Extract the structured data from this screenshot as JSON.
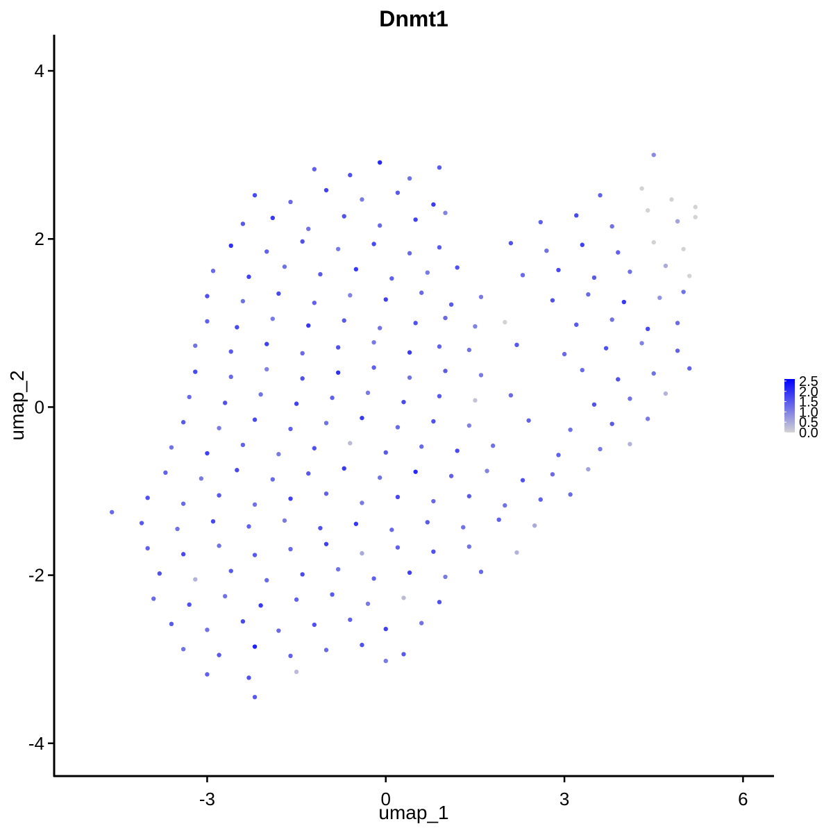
{
  "chart_data": {
    "type": "scatter",
    "title": "Dnmt1",
    "x_label": "umap_1",
    "y_label": "umap_2",
    "xlim": [
      -5.57,
      6.52
    ],
    "ylim": [
      -4.39,
      4.43
    ],
    "xticks": [
      -3,
      0,
      3,
      6
    ],
    "yticks": [
      -4,
      -2,
      0,
      2,
      4
    ],
    "color_low": "#d3d3d3",
    "color_high": "#0000ff",
    "clim": [
      0,
      2.6
    ],
    "cticks": [
      {
        "value": 0,
        "label": "0.0"
      },
      0.5,
      {
        "value": 1,
        "label": "1.0"
      },
      1.5,
      {
        "value": 2,
        "label": "2.0"
      },
      2.5
    ],
    "x": [
      -1.2,
      -0.6,
      -0.1,
      0.4,
      0.9,
      4.5,
      -2.2,
      -1.6,
      -1.0,
      -0.4,
      0.2,
      0.8,
      3.6,
      4.3,
      4.8,
      5.2,
      -2.4,
      -1.9,
      -1.3,
      -0.7,
      -0.1,
      0.5,
      1.0,
      2.6,
      3.2,
      3.8,
      4.4,
      4.9,
      5.2,
      -2.6,
      -2.0,
      -1.4,
      -0.8,
      -0.2,
      0.4,
      0.9,
      2.1,
      2.7,
      3.3,
      3.9,
      4.5,
      5.0,
      -2.9,
      -2.3,
      -1.7,
      -1.1,
      -0.5,
      0.1,
      0.7,
      1.2,
      2.3,
      2.9,
      3.5,
      4.1,
      4.7,
      5.1,
      -3.0,
      -2.4,
      -1.8,
      -1.2,
      -0.6,
      0.0,
      0.6,
      1.1,
      1.6,
      2.8,
      3.4,
      4.0,
      4.6,
      5.0,
      -3.0,
      -2.5,
      -1.9,
      -1.3,
      -0.7,
      -0.1,
      0.5,
      1.0,
      1.5,
      2.0,
      3.2,
      3.8,
      4.4,
      4.9,
      -3.2,
      -2.6,
      -2.0,
      -1.4,
      -0.8,
      -0.2,
      0.4,
      0.9,
      1.4,
      2.2,
      3.0,
      3.7,
      4.3,
      4.9,
      -3.2,
      -2.6,
      -2.0,
      -1.4,
      -0.8,
      -0.2,
      0.4,
      1.0,
      1.6,
      3.3,
      3.9,
      4.5,
      5.1,
      -3.3,
      -2.7,
      -2.1,
      -1.5,
      -0.9,
      -0.3,
      0.3,
      0.9,
      1.5,
      2.1,
      3.5,
      4.1,
      4.7,
      -3.4,
      -2.8,
      -2.2,
      -1.6,
      -1.0,
      -0.4,
      0.2,
      0.8,
      1.4,
      2.4,
      3.1,
      3.8,
      4.4,
      -3.6,
      -3.0,
      -2.4,
      -1.8,
      -1.2,
      -0.6,
      0.0,
      0.6,
      1.2,
      1.8,
      2.9,
      3.6,
      4.1,
      -3.7,
      -3.1,
      -2.5,
      -1.9,
      -1.3,
      -0.7,
      -0.1,
      0.5,
      1.1,
      1.7,
      2.3,
      2.8,
      3.4,
      -4.0,
      -3.4,
      -2.8,
      -2.2,
      -1.6,
      -1.0,
      -0.4,
      0.2,
      0.8,
      1.4,
      2.0,
      2.6,
      3.1,
      -4.6,
      -4.1,
      -3.5,
      -2.9,
      -2.3,
      -1.7,
      -1.1,
      -0.5,
      0.1,
      0.7,
      1.3,
      1.9,
      2.5,
      -4.0,
      -3.4,
      -2.8,
      -2.2,
      -1.6,
      -1.0,
      -0.4,
      0.2,
      0.8,
      1.4,
      2.2,
      -3.8,
      -3.2,
      -2.6,
      -2.0,
      -1.4,
      -0.8,
      -0.2,
      0.4,
      1.0,
      1.6,
      -3.9,
      -3.3,
      -2.7,
      -2.1,
      -1.5,
      -0.9,
      -0.3,
      0.3,
      0.9,
      -3.6,
      -3.0,
      -2.4,
      -1.8,
      -1.2,
      -0.6,
      0.0,
      0.6,
      -3.4,
      -2.8,
      -2.2,
      -1.6,
      -1.0,
      -0.4,
      0.3,
      -3.0,
      -2.3,
      -1.5,
      0.0,
      -2.2
    ],
    "y": [
      2.83,
      2.76,
      2.91,
      2.72,
      2.85,
      3.0,
      2.52,
      2.44,
      2.58,
      2.47,
      2.55,
      2.41,
      2.52,
      2.6,
      2.47,
      2.38,
      2.18,
      2.25,
      2.12,
      2.27,
      2.16,
      2.23,
      2.31,
      2.2,
      2.28,
      2.15,
      2.34,
      2.21,
      2.26,
      1.92,
      1.85,
      1.97,
      1.88,
      1.94,
      1.83,
      1.9,
      1.95,
      1.86,
      1.93,
      1.84,
      1.96,
      1.88,
      1.62,
      1.55,
      1.67,
      1.58,
      1.64,
      1.53,
      1.6,
      1.66,
      1.57,
      1.63,
      1.54,
      1.61,
      1.68,
      1.56,
      1.32,
      1.26,
      1.35,
      1.24,
      1.33,
      1.28,
      1.36,
      1.22,
      1.31,
      1.27,
      1.34,
      1.25,
      1.3,
      1.37,
      1.02,
      0.95,
      1.05,
      0.97,
      1.03,
      0.94,
      1.0,
      1.06,
      0.96,
      1.01,
      0.98,
      1.04,
      0.93,
      1.0,
      0.73,
      0.66,
      0.75,
      0.64,
      0.71,
      0.77,
      0.65,
      0.72,
      0.68,
      0.74,
      0.63,
      0.7,
      0.76,
      0.67,
      0.42,
      0.36,
      0.45,
      0.34,
      0.41,
      0.47,
      0.35,
      0.43,
      0.38,
      0.44,
      0.33,
      0.4,
      0.46,
      0.12,
      0.05,
      0.15,
      0.04,
      0.11,
      0.17,
      0.06,
      0.13,
      0.08,
      0.14,
      0.03,
      0.1,
      0.16,
      -0.18,
      -0.25,
      -0.15,
      -0.26,
      -0.19,
      -0.13,
      -0.24,
      -0.17,
      -0.22,
      -0.16,
      -0.27,
      -0.2,
      -0.14,
      -0.48,
      -0.55,
      -0.45,
      -0.56,
      -0.49,
      -0.43,
      -0.54,
      -0.47,
      -0.52,
      -0.46,
      -0.57,
      -0.5,
      -0.44,
      -0.78,
      -0.85,
      -0.75,
      -0.86,
      -0.79,
      -0.73,
      -0.84,
      -0.77,
      -0.82,
      -0.76,
      -0.87,
      -0.8,
      -0.74,
      -1.08,
      -1.15,
      -1.05,
      -1.16,
      -1.09,
      -1.03,
      -1.14,
      -1.07,
      -1.12,
      -1.06,
      -1.17,
      -1.1,
      -1.04,
      -1.25,
      -1.38,
      -1.45,
      -1.36,
      -1.42,
      -1.35,
      -1.44,
      -1.39,
      -1.46,
      -1.37,
      -1.43,
      -1.34,
      -1.41,
      -1.68,
      -1.75,
      -1.65,
      -1.76,
      -1.69,
      -1.63,
      -1.74,
      -1.67,
      -1.72,
      -1.66,
      -1.73,
      -1.98,
      -2.05,
      -1.95,
      -2.06,
      -1.99,
      -1.93,
      -2.04,
      -1.97,
      -2.02,
      -1.96,
      -2.28,
      -2.35,
      -2.25,
      -2.36,
      -2.29,
      -2.23,
      -2.34,
      -2.27,
      -2.32,
      -2.58,
      -2.65,
      -2.55,
      -2.66,
      -2.59,
      -2.53,
      -2.64,
      -2.57,
      -2.88,
      -2.95,
      -2.85,
      -2.96,
      -2.89,
      -2.83,
      -2.94,
      -3.18,
      -3.22,
      -3.15,
      -3.02,
      -3.45
    ],
    "values": [
      1.4,
      1.6,
      2.1,
      1.2,
      1.5,
      0.9,
      1.7,
      1.3,
      1.8,
      1.1,
      1.5,
      1.9,
      1.4,
      0,
      0,
      0,
      1.5,
      1.9,
      1.2,
      1.6,
      1.3,
      1.8,
      1.0,
      1.4,
      1.7,
      1.2,
      0,
      0.6,
      0,
      2.0,
      1.4,
      1.6,
      1.1,
      1.7,
      1.3,
      1.5,
      1.6,
      1.2,
      1.8,
      1.4,
      0,
      0,
      1.3,
      1.8,
      1.2,
      1.5,
      1.9,
      1.4,
      1.1,
      1.6,
      1.3,
      1.7,
      1.5,
      1.2,
      0.5,
      0,
      1.6,
      1.2,
      1.7,
      1.4,
      1.0,
      1.8,
      1.3,
      1.5,
      1.1,
      1.6,
      1.3,
      1.9,
      0.8,
      1.2,
      1.4,
      1.7,
      1.1,
      1.9,
      1.5,
      1.2,
      1.6,
      1.3,
      1.0,
      0,
      1.5,
      1.2,
      1.7,
      1.3,
      1.2,
      1.5,
      1.8,
      1.3,
      1.6,
      1.1,
      1.9,
      1.4,
      1.2,
      1.5,
      1.3,
      1.6,
      1.0,
      1.4,
      1.7,
      1.3,
      1.0,
      1.6,
      2.0,
      1.4,
      1.2,
      1.5,
      1.1,
      1.3,
      1.6,
      1.2,
      1.4,
      1.3,
      1.6,
      1.2,
      1.8,
      1.4,
      1.1,
      1.7,
      1.5,
      0.2,
      1.3,
      1.6,
      1.2,
      0.4,
      1.5,
      1.1,
      1.7,
      1.4,
      1.2,
      1.9,
      1.3,
      1.6,
      1.0,
      1.4,
      1.2,
      1.5,
      1.1,
      1.2,
      1.8,
      1.4,
      1.1,
      1.6,
      0.3,
      1.5,
      1.3,
      1.7,
      1.2,
      1.4,
      1.1,
      0.4,
      1.4,
      1.1,
      1.7,
      1.3,
      1.5,
      1.9,
      1.2,
      2.1,
      1.4,
      1.0,
      1.6,
      1.3,
      0.6,
      1.6,
      1.3,
      1.5,
      1.2,
      1.8,
      1.4,
      1.1,
      1.7,
      1.3,
      1.5,
      1.2,
      1.4,
      1.3,
      1.3,
      1.5,
      1.2,
      1.7,
      1.4,
      1.1,
      1.6,
      1.9,
      1.3,
      1.5,
      1.2,
      1.4,
      0.5,
      1.4,
      1.7,
      1.2,
      1.5,
      1.3,
      1.8,
      0.5,
      1.4,
      1.6,
      1.2,
      0.4,
      1.6,
      0.4,
      1.5,
      1.3,
      1.7,
      1.2,
      1.4,
      1.8,
      1.1,
      1.3,
      1.3,
      1.6,
      1.2,
      1.9,
      1.4,
      1.5,
      1.1,
      0.3,
      1.6,
      1.5,
      1.2,
      1.7,
      1.3,
      1.6,
      1.4,
      1.8,
      1.2,
      1.2,
      1.5,
      2.2,
      1.4,
      1.3,
      1.6,
      1.5,
      1.4,
      1.6,
      0.3,
      1.1,
      1.5
    ]
  }
}
